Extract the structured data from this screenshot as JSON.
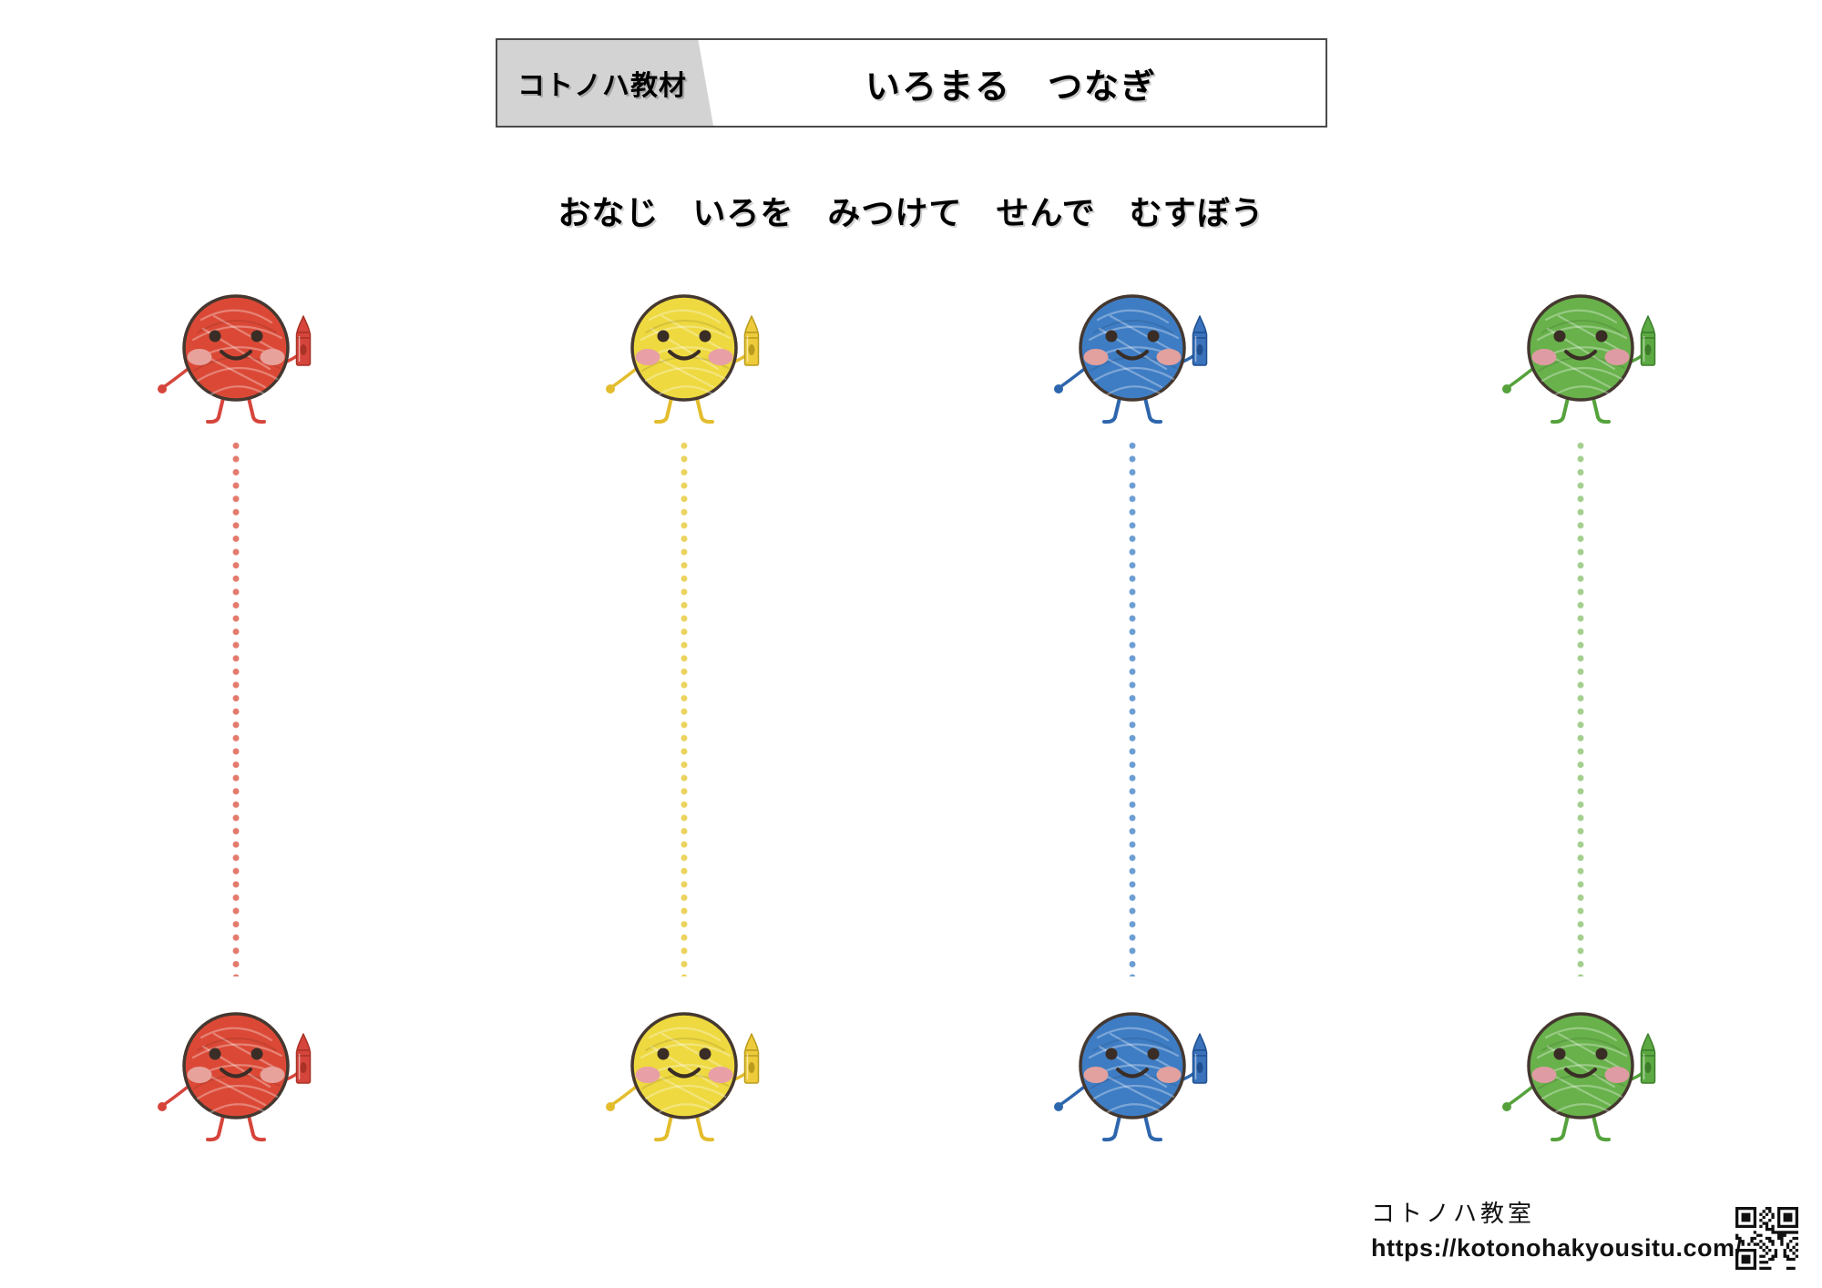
{
  "header": {
    "brand_label": "コトノハ教材",
    "title": "いろまる　つなぎ",
    "brand_bg": "#d3d3d3",
    "border_color": "#4a4a4a"
  },
  "instruction": {
    "text": "おなじ　いろを　みつけて　せんで　むすぼう"
  },
  "worksheet": {
    "columns": [
      {
        "name": "red",
        "colors": {
          "body": "#db4936",
          "outline": "#453830",
          "limb": "#d6453c",
          "cheek": "#e7a29c",
          "dot": "#e37a6c",
          "crayon": "#d6453c",
          "crayonDark": "#a83225"
        }
      },
      {
        "name": "yellow",
        "colors": {
          "body": "#eed940",
          "outline": "#453830",
          "limb": "#e3bd2d",
          "cheek": "#e8a0a6",
          "dot": "#ebd35e",
          "crayon": "#eecb3a",
          "crayonDark": "#b99b1e"
        }
      },
      {
        "name": "blue",
        "colors": {
          "body": "#3e7dc4",
          "outline": "#453830",
          "limb": "#2d66ad",
          "cheek": "#e2a19e",
          "dot": "#6c9ed3",
          "crayon": "#3a72bb",
          "crayonDark": "#1f4f8f"
        }
      },
      {
        "name": "green",
        "colors": {
          "body": "#68b14b",
          "outline": "#453830",
          "limb": "#55a23c",
          "cheek": "#df9ba3",
          "dot": "#a4cf8f",
          "crayon": "#5ca943",
          "crayonDark": "#3d7d2a"
        }
      }
    ]
  },
  "footer": {
    "site_name": "コトノハ教室",
    "url": "https://kotonohakyousitu.com/"
  }
}
